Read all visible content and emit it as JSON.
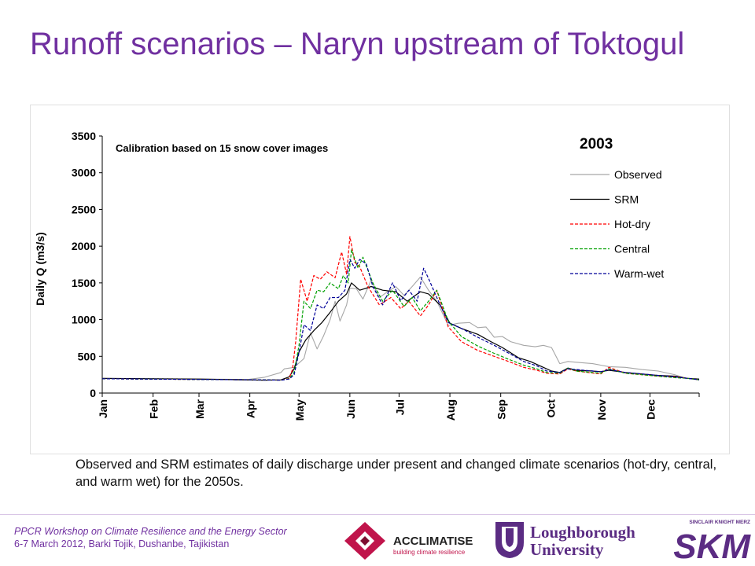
{
  "slide": {
    "title": "Runoff scenarios – Naryn upstream of Toktogul",
    "caption": "Observed and SRM estimates of daily discharge under present and changed climate scenarios (hot-dry, central, and warm wet) for the 2050s.",
    "footer_line1": "PPCR Workshop on Climate Resilience and the Energy Sector",
    "footer_line2": "6-7 March 2012, Barki Tojik, Dushanbe, Tajikistan",
    "logos": {
      "acclimatise": {
        "name": "ACCLIMATISE",
        "tagline": "building climate resilience",
        "color": "#c0144b"
      },
      "loughborough": {
        "line1": "Loughborough",
        "line2": "University",
        "color": "#5b2c83"
      },
      "skm": {
        "top": "SINCLAIR KNIGHT MERZ",
        "name": "SKM",
        "color": "#5b2c83"
      }
    }
  },
  "chart_data": {
    "type": "line",
    "title": "2003",
    "annotation": "Calibration based on 15 snow cover images",
    "ylabel": "Daily Q (m3/s)",
    "xlabel": "",
    "ylim": [
      0,
      3500
    ],
    "yticks": [
      0,
      500,
      1000,
      1500,
      2000,
      2500,
      3000,
      3500
    ],
    "xlim": [
      1,
      365
    ],
    "months": [
      {
        "label": "Jan",
        "day": 1
      },
      {
        "label": "Feb",
        "day": 32
      },
      {
        "label": "Mar",
        "day": 60
      },
      {
        "label": "Apr",
        "day": 91
      },
      {
        "label": "May",
        "day": 121
      },
      {
        "label": "Jun",
        "day": 152
      },
      {
        "label": "Jul",
        "day": 182
      },
      {
        "label": "Aug",
        "day": 213
      },
      {
        "label": "Sep",
        "day": 244
      },
      {
        "label": "Oct",
        "day": 274
      },
      {
        "label": "Nov",
        "day": 305
      },
      {
        "label": "Dec",
        "day": 335
      }
    ],
    "legend_position": "top-right",
    "grid": false,
    "series": [
      {
        "name": "Observed",
        "color": "#a6a6a6",
        "dash": "solid",
        "x": [
          1,
          60,
          90,
          100,
          110,
          112,
          118,
          124,
          128,
          132,
          136,
          140,
          143,
          146,
          150,
          152,
          156,
          160,
          165,
          170,
          175,
          180,
          185,
          190,
          195,
          200,
          205,
          212,
          218,
          225,
          230,
          235,
          240,
          245,
          250,
          258,
          265,
          270,
          275,
          280,
          285,
          290,
          300,
          305,
          310,
          320,
          330,
          340,
          350,
          357,
          365
        ],
        "y": [
          200,
          190,
          185,
          215,
          280,
          330,
          350,
          470,
          820,
          600,
          780,
          1000,
          1250,
          980,
          1200,
          1430,
          1420,
          1280,
          1540,
          1300,
          1380,
          1450,
          1330,
          1450,
          1580,
          1400,
          1250,
          920,
          950,
          960,
          890,
          900,
          760,
          770,
          700,
          650,
          630,
          650,
          620,
          400,
          430,
          420,
          400,
          380,
          360,
          350,
          320,
          300,
          250,
          200,
          190
        ]
      },
      {
        "name": "SRM",
        "color": "#000000",
        "dash": "solid",
        "x": [
          1,
          60,
          100,
          110,
          115,
          118,
          121,
          125,
          130,
          135,
          140,
          145,
          150,
          153,
          158,
          165,
          172,
          180,
          187,
          195,
          200,
          207,
          213,
          220,
          230,
          238,
          245,
          255,
          262,
          270,
          275,
          280,
          285,
          290,
          300,
          305,
          310,
          320,
          330,
          340,
          350,
          358,
          365
        ],
        "y": [
          200,
          190,
          175,
          180,
          220,
          330,
          560,
          720,
          850,
          960,
          1100,
          1250,
          1350,
          1500,
          1400,
          1450,
          1400,
          1380,
          1250,
          1380,
          1350,
          1200,
          950,
          880,
          800,
          700,
          620,
          480,
          430,
          350,
          300,
          280,
          340,
          310,
          300,
          290,
          310,
          280,
          260,
          240,
          230,
          200,
          190
        ]
      },
      {
        "name": "Hot-dry",
        "color": "#ff0000",
        "dash": "4,2",
        "x": [
          1,
          60,
          100,
          110,
          115,
          117,
          119,
          122,
          126,
          130,
          134,
          138,
          143,
          147,
          150,
          152,
          155,
          158,
          163,
          170,
          177,
          183,
          188,
          195,
          200,
          205,
          212,
          220,
          230,
          240,
          250,
          258,
          266,
          272,
          280,
          285,
          290,
          305,
          310,
          320,
          330,
          340,
          350,
          358,
          365
        ],
        "y": [
          195,
          185,
          180,
          175,
          200,
          320,
          700,
          1550,
          1250,
          1600,
          1550,
          1650,
          1570,
          1920,
          1620,
          2130,
          1780,
          1720,
          1450,
          1200,
          1300,
          1150,
          1250,
          1050,
          1200,
          1400,
          900,
          700,
          580,
          500,
          420,
          350,
          310,
          270,
          260,
          330,
          300,
          260,
          350,
          270,
          250,
          230,
          220,
          200,
          180
        ]
      },
      {
        "name": "Central",
        "color": "#00a000",
        "dash": "4,2",
        "x": [
          1,
          60,
          100,
          110,
          115,
          118,
          121,
          124,
          128,
          132,
          136,
          140,
          145,
          148,
          151,
          153,
          157,
          160,
          166,
          172,
          178,
          185,
          190,
          195,
          200,
          205,
          212,
          220,
          230,
          240,
          250,
          258,
          266,
          272,
          280,
          285,
          290,
          305,
          310,
          320,
          330,
          340,
          350,
          358,
          365
        ],
        "y": [
          195,
          185,
          180,
          175,
          195,
          280,
          650,
          1250,
          1150,
          1400,
          1380,
          1500,
          1420,
          1600,
          1500,
          1950,
          1700,
          1850,
          1500,
          1250,
          1400,
          1180,
          1300,
          1120,
          1250,
          1400,
          980,
          770,
          640,
          540,
          450,
          380,
          330,
          280,
          270,
          340,
          300,
          270,
          330,
          270,
          250,
          230,
          210,
          200,
          180
        ]
      },
      {
        "name": "Warm-wet",
        "color": "#000099",
        "dash": "4,2",
        "x": [
          1,
          60,
          100,
          110,
          115,
          118,
          121,
          124,
          128,
          132,
          136,
          140,
          145,
          149,
          152,
          155,
          158,
          162,
          166,
          172,
          178,
          183,
          188,
          193,
          197,
          200,
          205,
          212,
          220,
          230,
          240,
          250,
          258,
          266,
          272,
          280,
          285,
          290,
          305,
          310,
          320,
          330,
          340,
          350,
          358,
          365
        ],
        "y": [
          195,
          185,
          180,
          175,
          190,
          250,
          550,
          930,
          850,
          1200,
          1150,
          1300,
          1300,
          1400,
          1820,
          1700,
          1820,
          1760,
          1450,
          1200,
          1500,
          1260,
          1400,
          1250,
          1700,
          1560,
          1300,
          960,
          880,
          760,
          650,
          530,
          430,
          370,
          300,
          280,
          330,
          320,
          290,
          320,
          280,
          260,
          240,
          220,
          200,
          180
        ]
      }
    ]
  }
}
